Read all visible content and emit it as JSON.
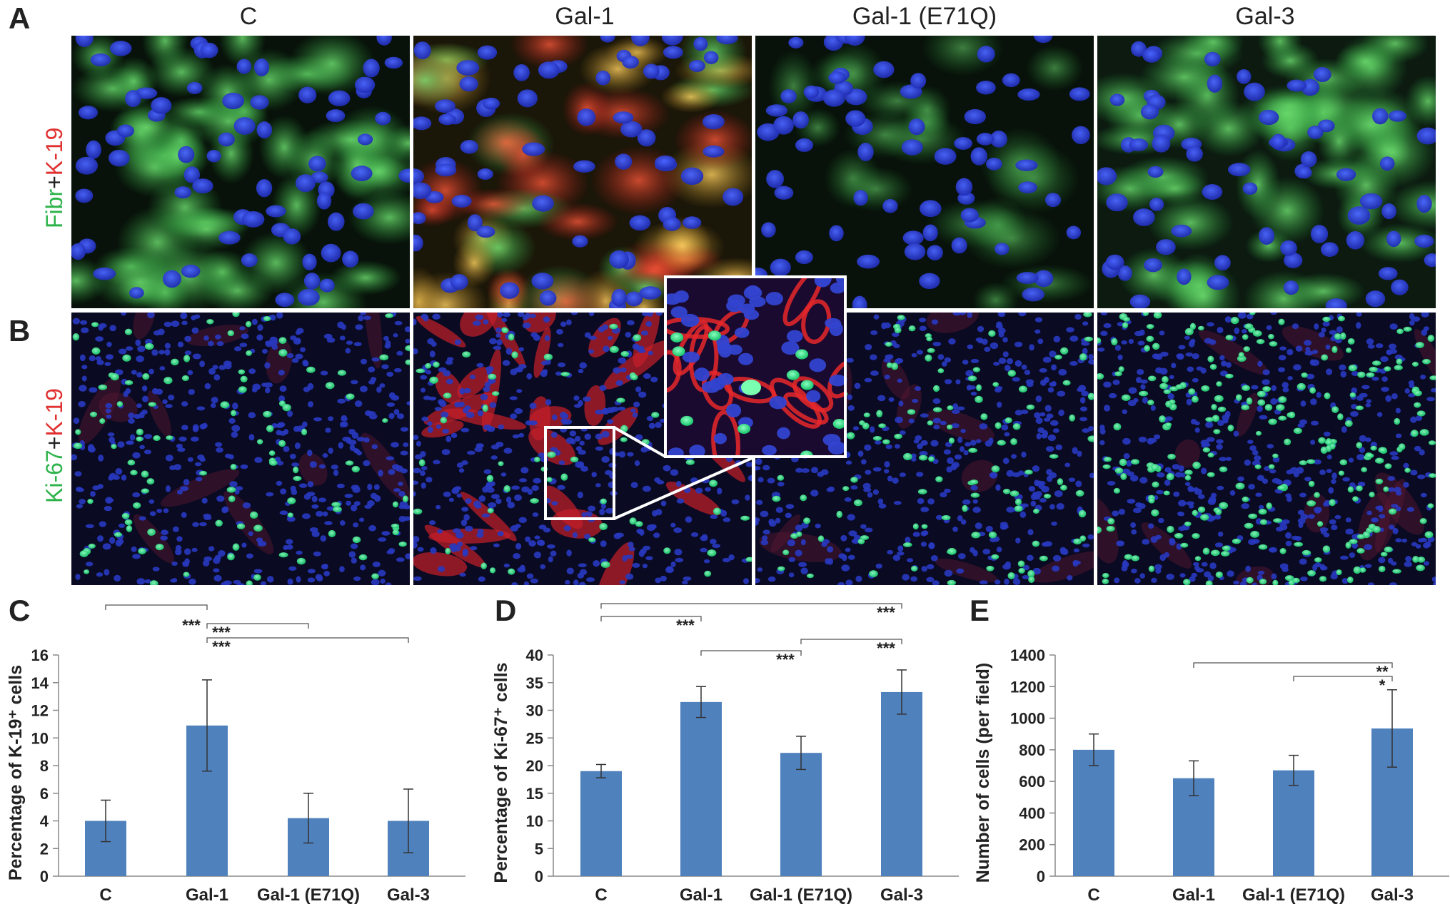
{
  "panel_letters": {
    "a": "A",
    "b": "B",
    "c": "C",
    "d": "D",
    "e": "E"
  },
  "column_titles": [
    "C",
    "Gal-1",
    "Gal-1 (E71Q)",
    "Gal-3"
  ],
  "row_labels": {
    "row_a": {
      "part1": "Fibr",
      "plus": "+",
      "part2": "K-19"
    },
    "row_b": {
      "part1": "Ki-67",
      "plus": "+",
      "part2": "K-19"
    }
  },
  "colors": {
    "bar": "#4f81bd",
    "green_label": "#2db34a",
    "red_label": "#e03030",
    "nucleus": "#2a3cd8",
    "cyto_green": "#3cc24a",
    "cyto_red": "#d8282a",
    "ki67": "#33e08a"
  },
  "chart_data": [
    {
      "type": "bar",
      "panel": "C",
      "categories": [
        "C",
        "Gal-1",
        "Gal-1 (E71Q)",
        "Gal-3"
      ],
      "values": [
        4.0,
        10.9,
        4.2,
        4.0
      ],
      "errors": [
        1.5,
        3.3,
        1.8,
        2.3
      ],
      "ylabel": "Percentage of K-19⁺ cells",
      "ylim": [
        0,
        16
      ],
      "yticks": [
        0,
        2,
        4,
        6,
        8,
        10,
        12,
        14,
        16
      ],
      "significance": [
        {
          "from": 0,
          "to": 1,
          "label": "***"
        },
        {
          "from": 1,
          "to": 2,
          "label": "***"
        },
        {
          "from": 1,
          "to": 3,
          "label": "***"
        }
      ]
    },
    {
      "type": "bar",
      "panel": "D",
      "categories": [
        "C",
        "Gal-1",
        "Gal-1 (E71Q)",
        "Gal-3"
      ],
      "values": [
        19.0,
        31.5,
        22.3,
        33.3
      ],
      "errors": [
        1.2,
        2.8,
        3.0,
        4.0
      ],
      "ylabel": "Percentage of Ki-67⁺ cells",
      "ylim": [
        0,
        40
      ],
      "yticks": [
        0,
        5,
        10,
        15,
        20,
        25,
        30,
        35,
        40
      ],
      "significance": [
        {
          "from": 0,
          "to": 1,
          "label": "***"
        },
        {
          "from": 1,
          "to": 2,
          "label": "***"
        },
        {
          "from": 2,
          "to": 3,
          "label": "***"
        },
        {
          "from": 0,
          "to": 3,
          "label": "***"
        }
      ]
    },
    {
      "type": "bar",
      "panel": "E",
      "categories": [
        "C",
        "Gal-1",
        "Gal-1 (E71Q)",
        "Gal-3"
      ],
      "values": [
        800,
        620,
        670,
        935
      ],
      "errors": [
        100,
        110,
        95,
        245
      ],
      "ylabel": "Number of cells (per field)",
      "ylim": [
        0,
        1400
      ],
      "yticks": [
        0,
        200,
        400,
        600,
        800,
        1000,
        1200,
        1400
      ],
      "significance": [
        {
          "from": 2,
          "to": 3,
          "label": "*"
        },
        {
          "from": 1,
          "to": 3,
          "label": "**"
        }
      ]
    }
  ]
}
